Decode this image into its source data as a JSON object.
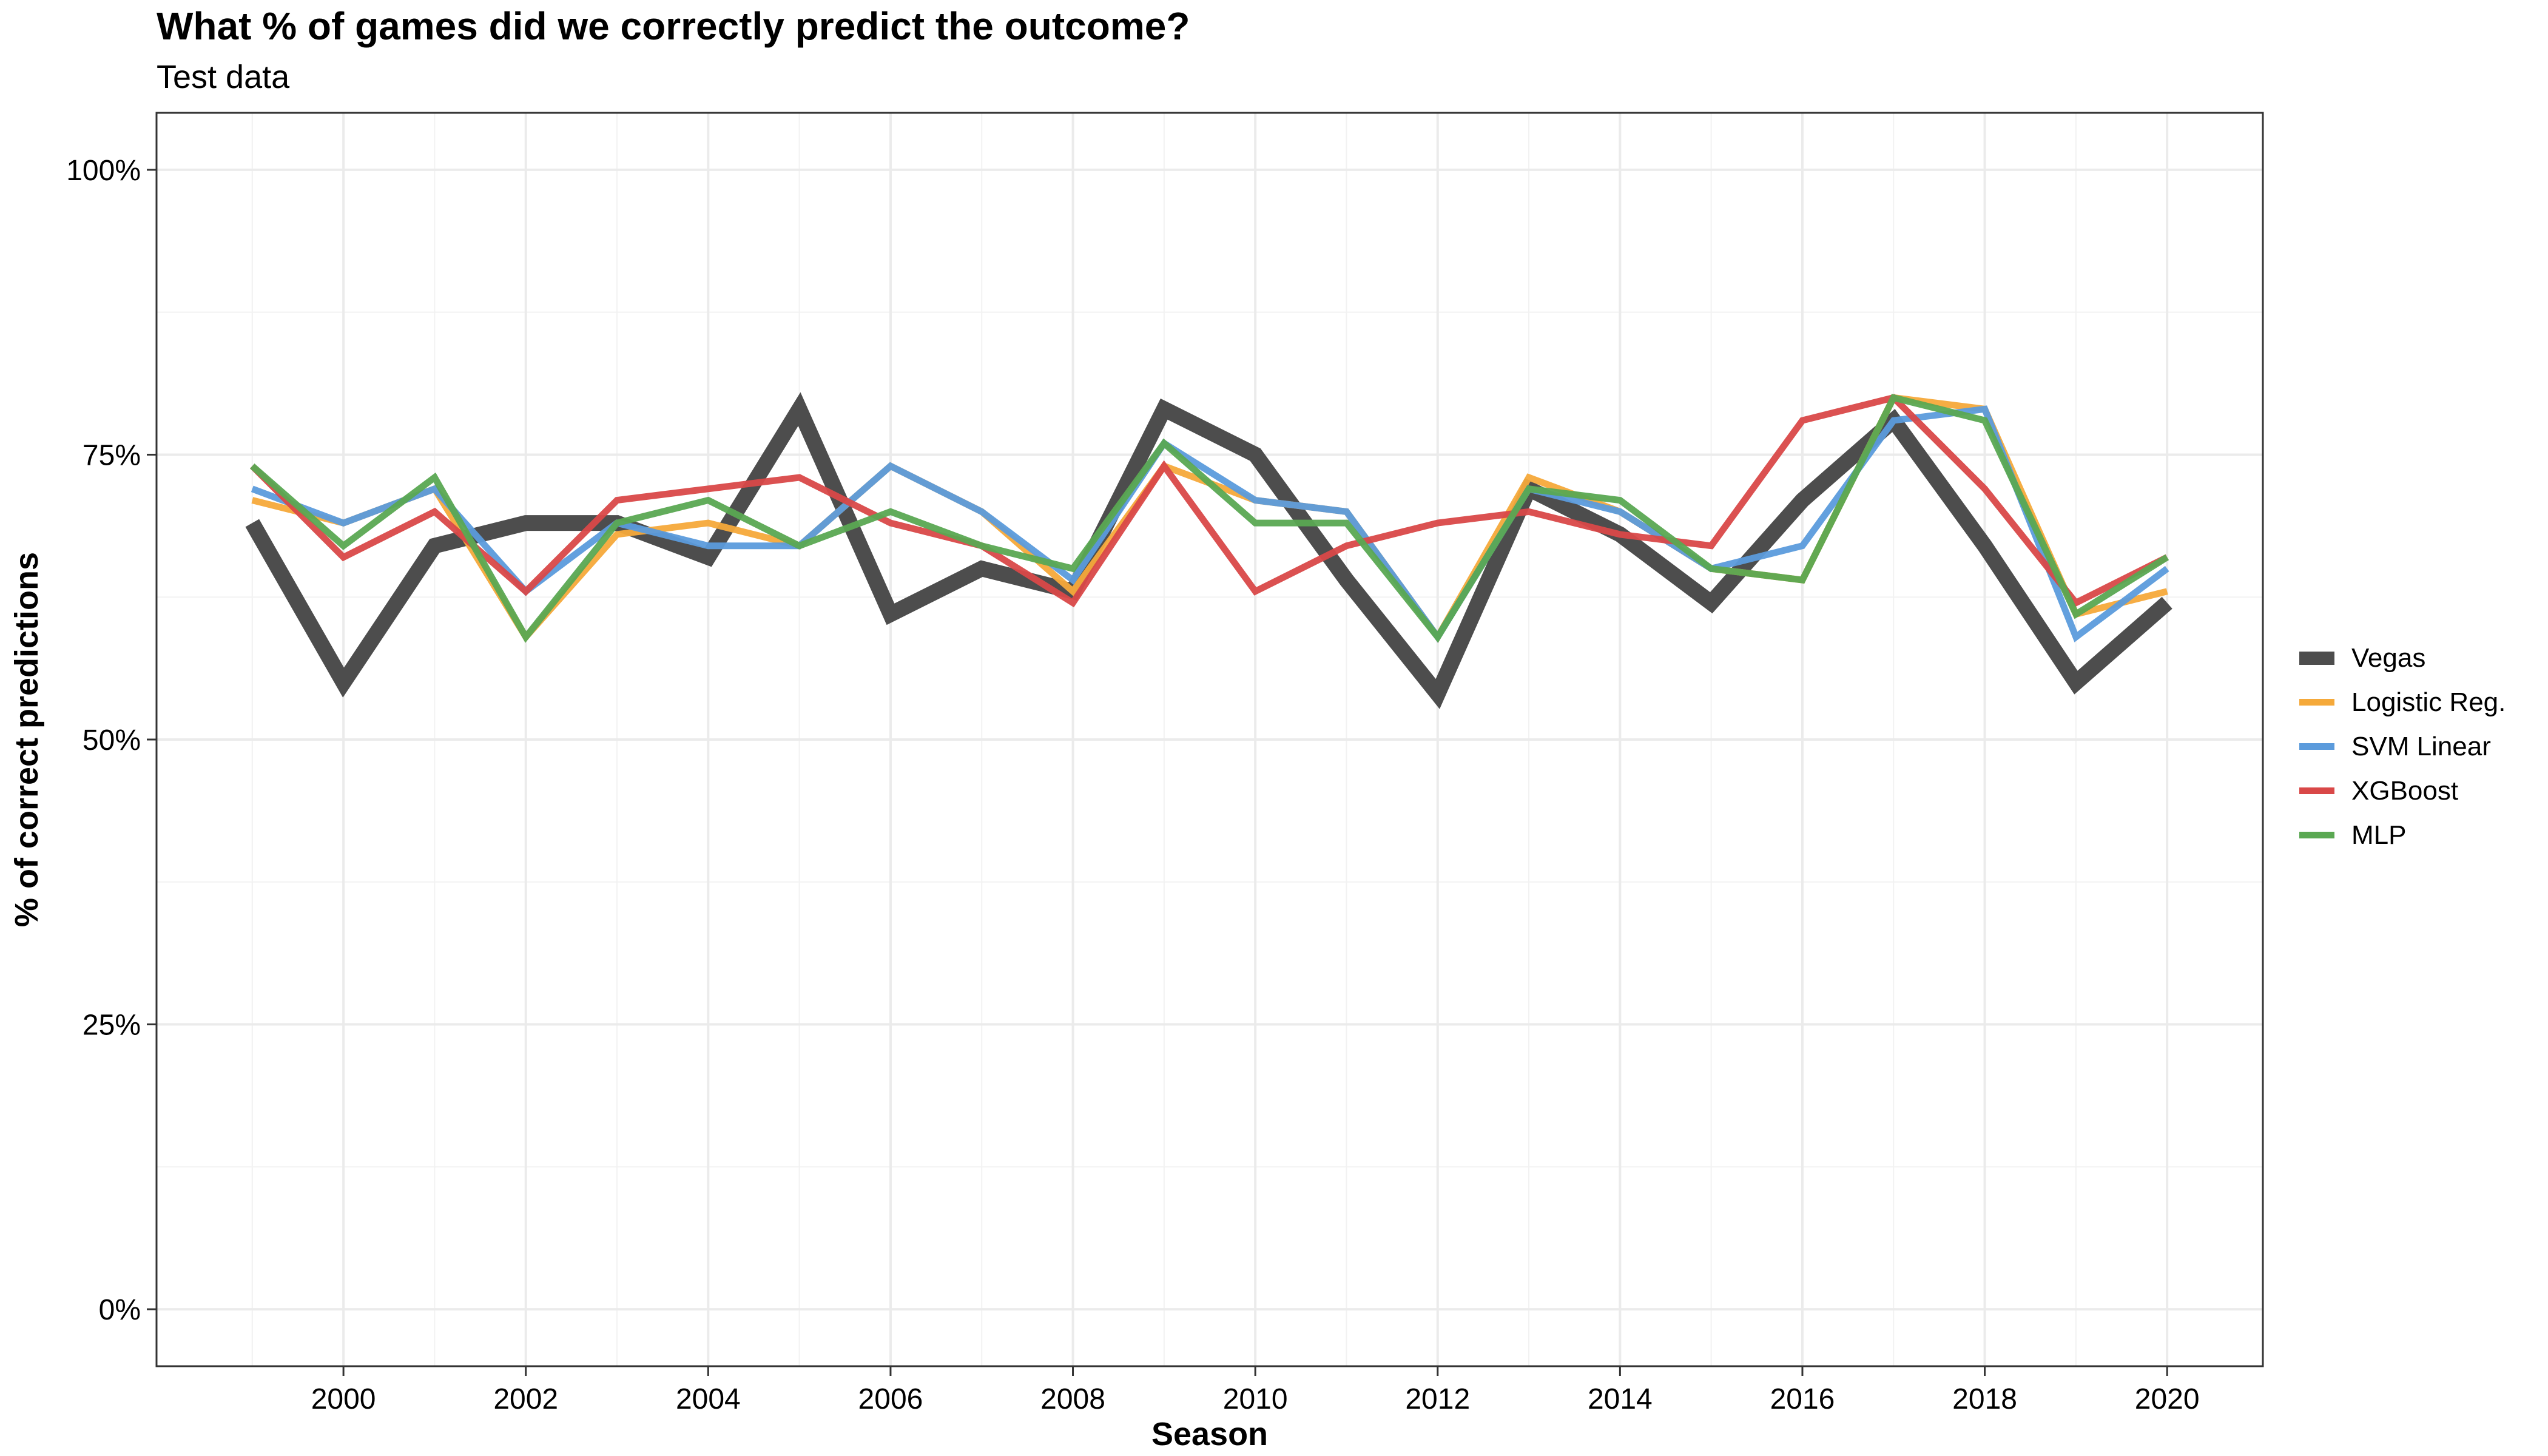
{
  "chart_data": {
    "type": "line",
    "title": "What % of games did we correctly predict the outcome?",
    "subtitle": "Test data",
    "xlabel": "Season",
    "ylabel": "% of correct predictions",
    "x": [
      1999,
      2000,
      2001,
      2002,
      2003,
      2004,
      2005,
      2006,
      2007,
      2008,
      2009,
      2010,
      2011,
      2012,
      2013,
      2014,
      2015,
      2016,
      2017,
      2018,
      2019,
      2020
    ],
    "xlim": [
      1997.95,
      2021.05
    ],
    "ylim": [
      -0.05,
      1.05
    ],
    "x_ticks": [
      2000,
      2002,
      2004,
      2006,
      2008,
      2010,
      2012,
      2014,
      2016,
      2018,
      2020
    ],
    "x_tick_labels": [
      "2000",
      "2002",
      "2004",
      "2006",
      "2008",
      "2010",
      "2012",
      "2014",
      "2016",
      "2018",
      "2020"
    ],
    "y_ticks": [
      0,
      0.25,
      0.5,
      0.75,
      1.0
    ],
    "y_tick_labels": [
      "0%",
      "25%",
      "50%",
      "75%",
      "100%"
    ],
    "grid": true,
    "legend_position": "right",
    "series": [
      {
        "name": "Vegas",
        "color": "#4d4d4d",
        "values": [
          0.69,
          0.55,
          0.67,
          0.69,
          0.69,
          0.66,
          0.79,
          0.61,
          0.65,
          0.63,
          0.79,
          0.75,
          0.64,
          0.54,
          0.72,
          0.68,
          0.62,
          0.71,
          0.78,
          0.67,
          0.55,
          0.62
        ]
      },
      {
        "name": "Logistic Reg.",
        "color": "#f5a93a",
        "values": [
          0.71,
          0.69,
          0.72,
          0.59,
          0.68,
          0.69,
          0.67,
          0.74,
          0.7,
          0.63,
          0.74,
          0.71,
          0.7,
          0.59,
          0.73,
          0.7,
          0.65,
          0.64,
          0.8,
          0.79,
          0.61,
          0.63
        ]
      },
      {
        "name": "SVM Linear",
        "color": "#5b9bdc",
        "values": [
          0.72,
          0.69,
          0.72,
          0.63,
          0.69,
          0.67,
          0.67,
          0.74,
          0.7,
          0.64,
          0.76,
          0.71,
          0.7,
          0.59,
          0.72,
          0.7,
          0.65,
          0.67,
          0.78,
          0.79,
          0.59,
          0.65
        ]
      },
      {
        "name": "XGBoost",
        "color": "#d94848",
        "values": [
          0.74,
          0.66,
          0.7,
          0.63,
          0.71,
          0.72,
          0.73,
          0.69,
          0.67,
          0.62,
          0.74,
          0.63,
          0.67,
          0.69,
          0.7,
          0.68,
          0.67,
          0.78,
          0.8,
          0.72,
          0.62,
          0.66
        ]
      },
      {
        "name": "MLP",
        "color": "#5aa852",
        "values": [
          0.74,
          0.67,
          0.73,
          0.59,
          0.69,
          0.71,
          0.67,
          0.7,
          0.67,
          0.65,
          0.76,
          0.69,
          0.69,
          0.59,
          0.72,
          0.71,
          0.65,
          0.64,
          0.8,
          0.78,
          0.61,
          0.66
        ]
      }
    ]
  }
}
